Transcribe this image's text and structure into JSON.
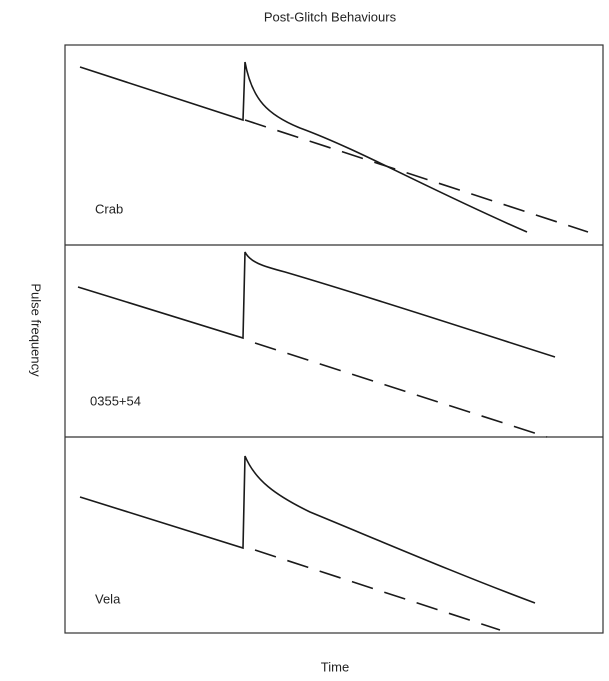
{
  "title": "Post-Glitch Behaviours",
  "y_label": "Pulse frequency",
  "x_label": "Time",
  "panels": [
    {
      "label": "Crab"
    },
    {
      "label": "0355+54"
    },
    {
      "label": "Vela"
    }
  ]
}
